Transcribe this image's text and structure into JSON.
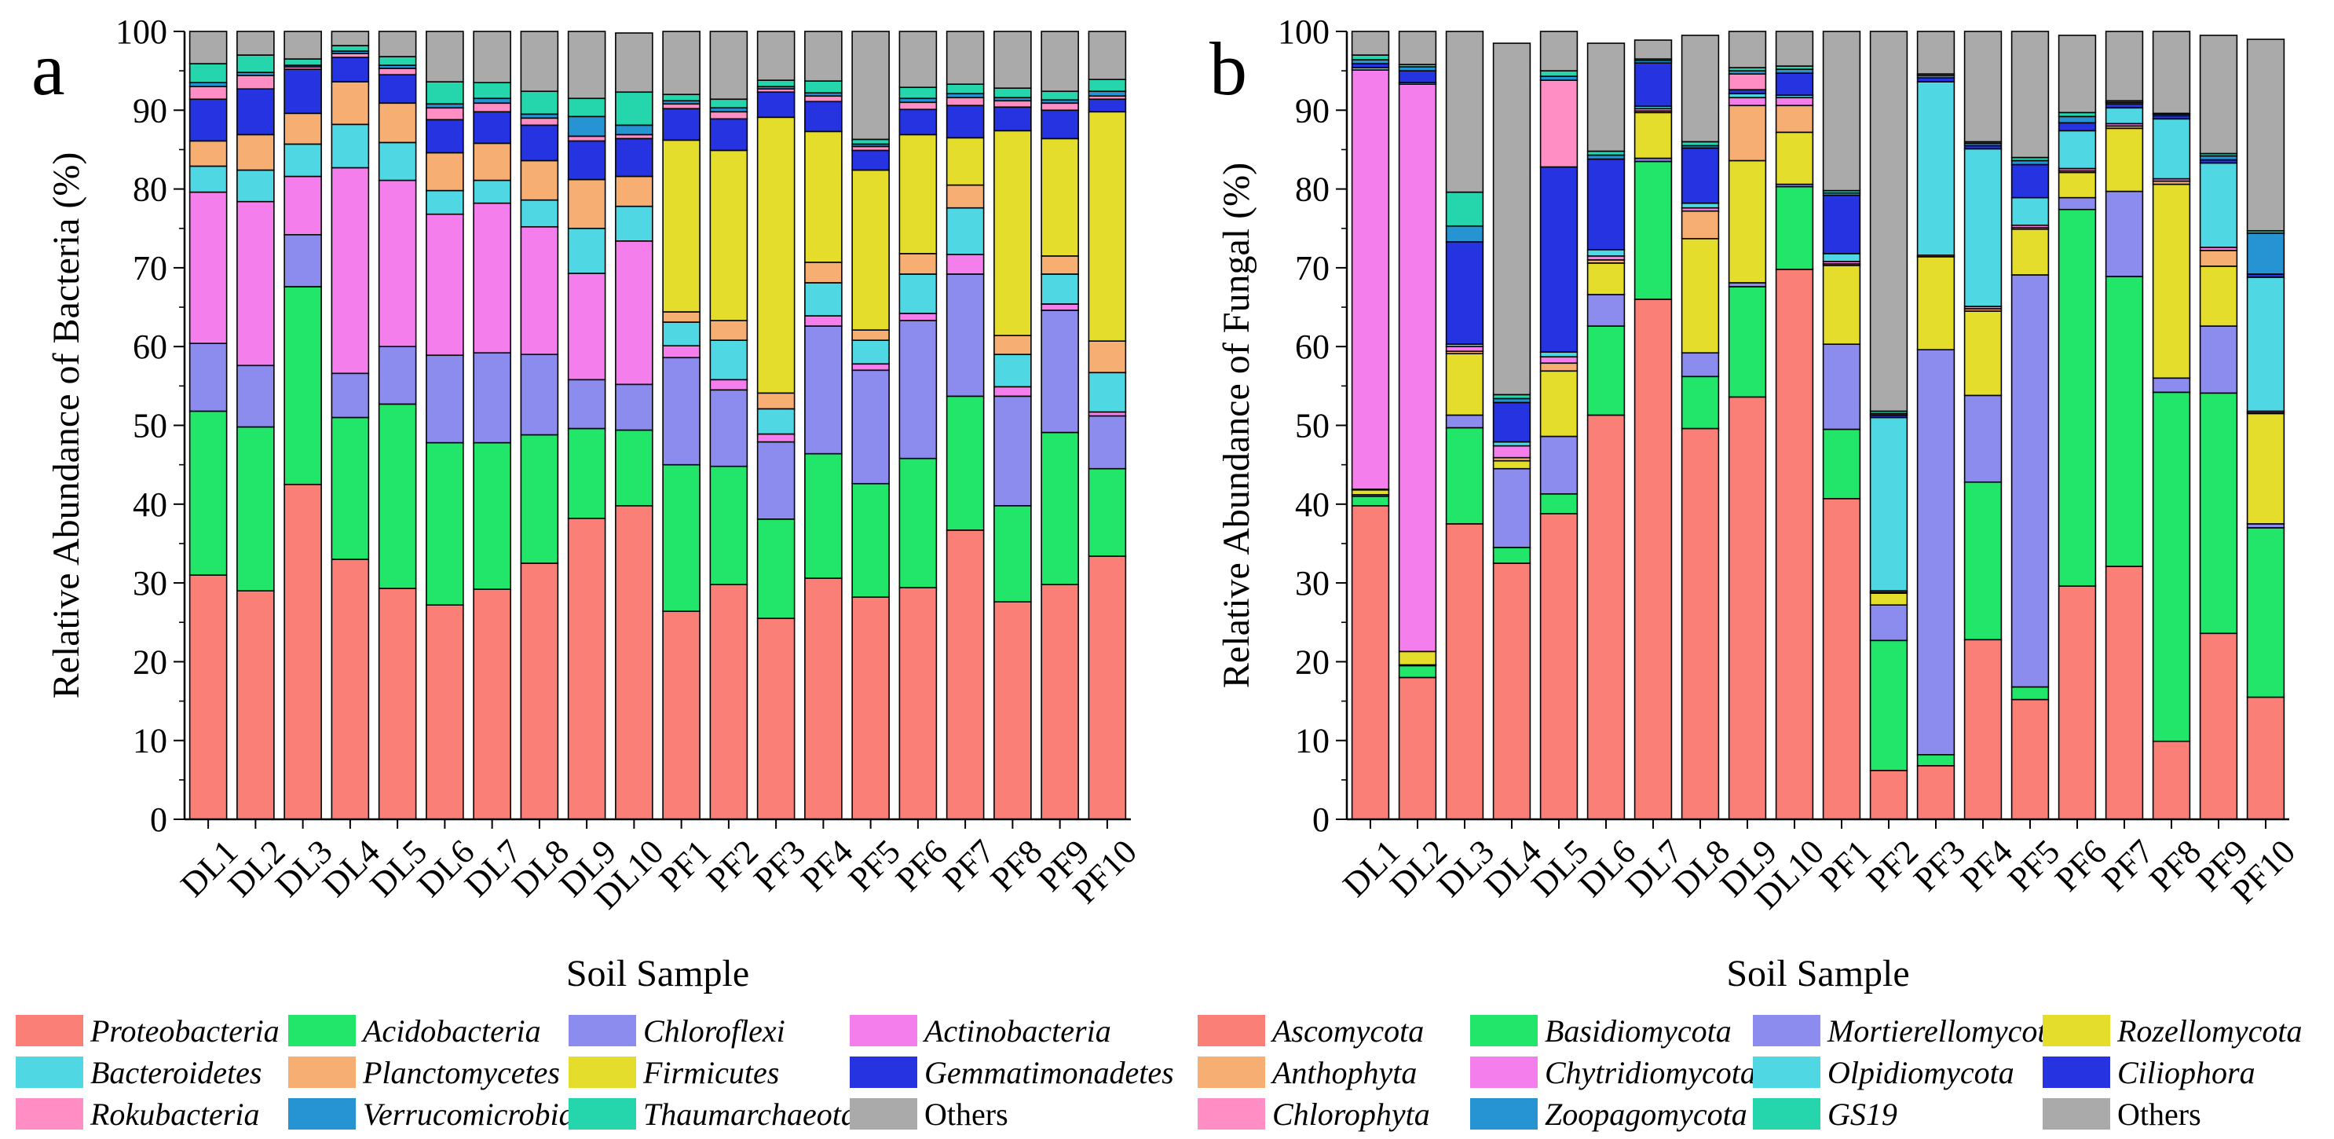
{
  "figure": {
    "panel_labels": [
      "a",
      "b"
    ]
  },
  "chart_data": [
    {
      "type": "bar",
      "stacked": true,
      "panel": "a",
      "title": "",
      "xlabel": "Soil Sample",
      "ylabel": "Relative Abundance of Bacteria (%)",
      "ylim": [
        0,
        100
      ],
      "yticks": [
        "0",
        "10",
        "20",
        "30",
        "40",
        "50",
        "60",
        "70",
        "80",
        "90",
        "100"
      ],
      "categories": [
        "DL1",
        "DL2",
        "DL3",
        "DL4",
        "DL5",
        "DL6",
        "DL7",
        "DL8",
        "DL9",
        "DL10",
        "PF1",
        "PF2",
        "PF3",
        "PF4",
        "PF5",
        "PF6",
        "PF7",
        "PF8",
        "PF9",
        "PF10"
      ],
      "series": [
        {
          "name": "Proteobacteria",
          "color": "#FA7F77",
          "values": [
            31,
            29,
            42.5,
            33,
            29.3,
            27.2,
            29.2,
            32.5,
            38.2,
            39.8,
            26.4,
            29.8,
            25.5,
            30.6,
            28.2,
            29.4,
            36.7,
            27.6,
            29.8,
            33.4
          ]
        },
        {
          "name": "Acidobacteria",
          "color": "#22E66A",
          "values": [
            20.8,
            20.8,
            25.1,
            18,
            23.4,
            20.6,
            18.6,
            16.3,
            11.4,
            9.6,
            18.6,
            15,
            12.6,
            15.8,
            14.4,
            16.4,
            17,
            12.2,
            19.3,
            11.1
          ]
        },
        {
          "name": "Chloroflexi",
          "color": "#8C8CEE",
          "values": [
            8.6,
            7.8,
            6.6,
            5.6,
            7.3,
            11.1,
            11.4,
            10.2,
            6.2,
            5.8,
            13.6,
            9.7,
            9.8,
            16.2,
            14.4,
            17.5,
            15.5,
            13.9,
            15.5,
            6.7
          ]
        },
        {
          "name": "Actinobacteria",
          "color": "#F47EEC",
          "values": [
            19.2,
            20.8,
            7.4,
            26.1,
            21.1,
            17.9,
            19,
            16.2,
            13.5,
            18.2,
            1.5,
            1.3,
            1,
            1.3,
            0.8,
            0.9,
            2.5,
            1.2,
            0.8,
            0.5
          ]
        },
        {
          "name": "Bacteroidetes",
          "color": "#4FD8E3",
          "values": [
            3.3,
            4,
            4.1,
            5.5,
            4.8,
            3,
            2.9,
            3.4,
            5.7,
            4.4,
            3,
            5,
            3.2,
            4.2,
            3,
            5,
            5.9,
            4.1,
            3.8,
            5
          ]
        },
        {
          "name": "Planctomycetes",
          "color": "#F7AE72",
          "values": [
            3.2,
            4.5,
            3.9,
            5.4,
            5,
            4.8,
            4.7,
            5,
            6.2,
            3.8,
            1.3,
            2.5,
            2,
            2.6,
            1.3,
            2.6,
            2.9,
            2.4,
            2.3,
            4
          ]
        },
        {
          "name": "Firmicutes",
          "color": "#E4DD2C",
          "values": [
            0,
            0,
            0,
            0,
            0,
            0,
            0,
            0,
            0,
            0,
            21.8,
            21.6,
            35,
            16.6,
            20.3,
            15.1,
            6,
            26,
            14.9,
            29.1
          ]
        },
        {
          "name": "Gemmatimonadetes",
          "color": "#2533E0",
          "values": [
            5.3,
            5.8,
            5.6,
            3.1,
            3.6,
            4.2,
            4,
            4.5,
            4.9,
            4.8,
            4,
            4,
            3.2,
            3.8,
            2.5,
            3.2,
            4.1,
            3,
            3.6,
            1.6
          ]
        },
        {
          "name": "Rokubacteria",
          "color": "#FF8EC4",
          "values": [
            1.6,
            1.7,
            0.3,
            0.5,
            0.8,
            1.5,
            1.1,
            0.9,
            0.6,
            0.5,
            0.6,
            0.9,
            0.4,
            0.7,
            0.5,
            0.9,
            1,
            0.8,
            0.9,
            0.4
          ]
        },
        {
          "name": "Verrucomicrobia",
          "color": "#2693D2",
          "values": [
            0.5,
            0.4,
            0.2,
            0.3,
            0.4,
            0.5,
            0.6,
            0.5,
            2.5,
            1.2,
            0.4,
            0.5,
            0.3,
            0.4,
            0.3,
            0.5,
            0.5,
            0.4,
            0.4,
            0.6
          ]
        },
        {
          "name": "Thaumarchaeota",
          "color": "#25D6AD",
          "values": [
            2.4,
            2.2,
            0.8,
            0.7,
            1.1,
            2.8,
            2,
            2.9,
            2.3,
            4.2,
            0.8,
            1.1,
            0.8,
            1.5,
            0.6,
            1.4,
            1.2,
            1.2,
            1.1,
            1.5
          ]
        },
        {
          "name": "Others",
          "color": "#AAAAAA",
          "values": [
            4.1,
            3,
            3.5,
            1.8,
            3.2,
            6.4,
            6.5,
            7.6,
            8.5,
            7.5,
            8,
            8.6,
            6.2,
            6.3,
            13.7,
            7.1,
            6.7,
            7.2,
            7.6,
            6.1
          ]
        }
      ]
    },
    {
      "type": "bar",
      "stacked": true,
      "panel": "b",
      "title": "",
      "xlabel": "Soil Sample",
      "ylabel": "Relative Abundance of Fungal (%)",
      "ylim": [
        0,
        100
      ],
      "yticks": [
        "0",
        "10",
        "20",
        "30",
        "40",
        "50",
        "60",
        "70",
        "80",
        "90",
        "100"
      ],
      "categories": [
        "DL1",
        "DL2",
        "DL3",
        "DL4",
        "DL5",
        "DL6",
        "DL7",
        "DL8",
        "DL9",
        "DL10",
        "PF1",
        "PF2",
        "PF3",
        "PF4",
        "PF5",
        "PF6",
        "PF7",
        "PF8",
        "PF9",
        "PF10"
      ],
      "series": [
        {
          "name": "Ascomycota",
          "color": "#FA7F77",
          "values": [
            39.8,
            18,
            37.5,
            32.5,
            38.8,
            51.3,
            66,
            49.6,
            53.6,
            69.8,
            40.7,
            6.2,
            6.8,
            22.8,
            15.2,
            29.6,
            32.1,
            9.9,
            23.6,
            15.5
          ]
        },
        {
          "name": "Basidiomycota",
          "color": "#22E66A",
          "values": [
            1.2,
            1.5,
            12.2,
            2,
            2.5,
            11.3,
            17.5,
            6.6,
            14,
            10.5,
            8.8,
            16.5,
            1.4,
            20,
            1.6,
            47.8,
            36.8,
            44.3,
            30.5,
            21.5
          ]
        },
        {
          "name": "Mortierellomycota",
          "color": "#8C8CEE",
          "values": [
            0.2,
            0.1,
            1.6,
            10,
            7.3,
            4,
            0.4,
            3,
            0.5,
            0.3,
            10.8,
            4.5,
            51.4,
            11,
            52.3,
            1.5,
            10.8,
            1.8,
            8.5,
            0.5
          ]
        },
        {
          "name": "Rozellomycota",
          "color": "#E4DD2C",
          "values": [
            0.6,
            1.7,
            7.8,
            1,
            8.3,
            4,
            5.8,
            14.5,
            15.5,
            6.6,
            10,
            1.5,
            11.8,
            10.7,
            5.8,
            3.2,
            8,
            24.6,
            7.6,
            14
          ]
        },
        {
          "name": "Anthophyta",
          "color": "#F7AE72",
          "values": [
            0.1,
            0,
            0.3,
            0.4,
            1,
            0.4,
            0.2,
            3.5,
            7,
            3.4,
            0.2,
            0.1,
            0,
            0.3,
            0.2,
            0.2,
            0.3,
            0.4,
            2,
            0.1
          ]
        },
        {
          "name": "Chytridiomycota",
          "color": "#F47EEC",
          "values": [
            53.2,
            72,
            0.6,
            1.5,
            0.8,
            0.5,
            0.3,
            0.4,
            1,
            1,
            0.3,
            0.2,
            0.2,
            0.3,
            0.3,
            0.3,
            0.3,
            0.3,
            0.4,
            0.2
          ]
        },
        {
          "name": "Olpidiomycota",
          "color": "#4FD8E3",
          "values": [
            0.3,
            0.2,
            0.3,
            0.5,
            0.6,
            0.8,
            0.3,
            0.6,
            0.5,
            0.3,
            1,
            22,
            22,
            20,
            3.5,
            4.8,
            2,
            7.6,
            10.7,
            17
          ]
        },
        {
          "name": "Ciliophora",
          "color": "#2533E0",
          "values": [
            0.5,
            1.5,
            13,
            5,
            23.5,
            11.5,
            5.5,
            7,
            0.5,
            2.8,
            7.4,
            0.3,
            0.5,
            0.4,
            4.2,
            1,
            0.5,
            0.4,
            0.4,
            0.4
          ]
        },
        {
          "name": "Chlorophyta",
          "color": "#FF8EC4",
          "values": [
            0,
            0,
            0,
            0,
            11,
            0,
            0,
            0,
            2,
            0,
            0,
            0,
            0,
            0,
            0,
            0,
            0,
            0,
            0,
            0
          ]
        },
        {
          "name": "Zoopagomycota",
          "color": "#2693D2",
          "values": [
            0.5,
            0.5,
            2,
            0.5,
            0.5,
            0.5,
            0.3,
            0.3,
            0.4,
            0.5,
            0.3,
            0.2,
            0.3,
            0.3,
            0.5,
            0.8,
            0.2,
            0.2,
            0.5,
            5.2
          ]
        },
        {
          "name": "GS19",
          "color": "#25D6AD",
          "values": [
            0.6,
            0.3,
            4.3,
            0.5,
            0.7,
            0.5,
            0.2,
            0.5,
            0.4,
            0.4,
            0.3,
            0.3,
            0.2,
            0.2,
            0.4,
            0.5,
            0.2,
            0.1,
            0.3,
            0.3
          ]
        },
        {
          "name": "Others",
          "color": "#AAAAAA",
          "values": [
            3,
            4.2,
            20.4,
            44.6,
            5,
            13.7,
            2.4,
            13.5,
            4.6,
            4.4,
            20.2,
            48.2,
            5.4,
            14,
            16,
            9.8,
            8.8,
            10.4,
            15,
            24.3
          ]
        }
      ]
    }
  ]
}
